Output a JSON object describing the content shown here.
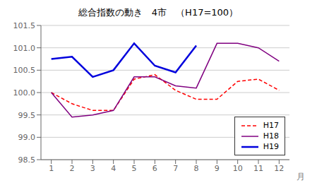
{
  "chart_data": {
    "type": "line",
    "title": "総合指数の動き　4市　（H17=100）",
    "x_label": "月",
    "x": [
      1,
      2,
      3,
      4,
      5,
      6,
      7,
      8,
      9,
      10,
      11,
      12
    ],
    "series": [
      {
        "name": "H17",
        "color": "#FF0000",
        "line_style": "dashed",
        "values": [
          100.0,
          99.75,
          99.6,
          99.6,
          100.3,
          100.4,
          100.05,
          99.85,
          99.85,
          100.25,
          100.3,
          100.05
        ]
      },
      {
        "name": "H18",
        "color": "#800080",
        "line_style": "solid",
        "values": [
          100.0,
          99.45,
          99.5,
          99.6,
          100.35,
          100.35,
          100.15,
          100.1,
          101.1,
          101.1,
          101.0,
          100.7
        ]
      },
      {
        "name": "H19",
        "color": "#0000DD",
        "line_style": "solid",
        "values": [
          100.75,
          100.8,
          100.35,
          100.5,
          101.1,
          100.6,
          100.45,
          101.05,
          null,
          null,
          null,
          null
        ]
      }
    ],
    "xlim": [
      0.5,
      12.5
    ],
    "xticks": [
      1,
      2,
      3,
      4,
      5,
      6,
      7,
      8,
      9,
      10,
      11,
      12
    ],
    "ylim": [
      98.5,
      101.5
    ],
    "yticks": [
      98.5,
      {
        "value": 99.0,
        "label": "99.0"
      },
      99.5,
      {
        "value": 100.0,
        "label": "100.0"
      },
      100.5,
      {
        "value": 101.0,
        "label": "101.0"
      },
      101.5
    ],
    "grid": "y",
    "legend": "lower right"
  }
}
